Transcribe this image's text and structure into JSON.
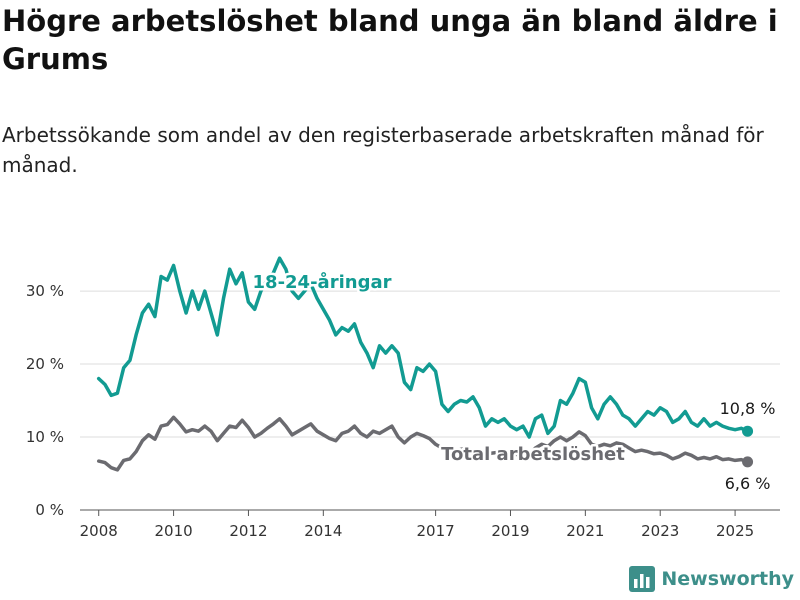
{
  "title": "Högre arbetslöshet bland unga än bland äldre i Grums",
  "subtitle": "Arbetssökande som andel av den registerbaserade arbetskraften månad för månad.",
  "brand": {
    "name": "Newsworthy",
    "icon": "chart-bars-icon",
    "color": "#3d8f8a"
  },
  "chart_data": {
    "type": "line",
    "title": "",
    "xlabel": "",
    "ylabel": "",
    "x_ticks": [
      "2008",
      "2010",
      "2012",
      "2014",
      "2017",
      "2019",
      "2021",
      "2023",
      "2025"
    ],
    "y_ticks": [
      "0 %",
      "10 %",
      "20 %",
      "30 %"
    ],
    "ylim": [
      0,
      37
    ],
    "grid": "horizontal",
    "series": [
      {
        "name": "18-24-åringar",
        "color": "#129b92",
        "end_label": "10,8 %",
        "points": [
          [
            "2008-01",
            18.0
          ],
          [
            "2008-03",
            17.2
          ],
          [
            "2008-05",
            15.7
          ],
          [
            "2008-07",
            16.0
          ],
          [
            "2008-09",
            19.5
          ],
          [
            "2008-11",
            20.5
          ],
          [
            "2009-01",
            24.0
          ],
          [
            "2009-03",
            27.0
          ],
          [
            "2009-05",
            28.2
          ],
          [
            "2009-07",
            26.5
          ],
          [
            "2009-09",
            32.0
          ],
          [
            "2009-11",
            31.5
          ],
          [
            "2010-01",
            33.5
          ],
          [
            "2010-03",
            30.0
          ],
          [
            "2010-05",
            27.0
          ],
          [
            "2010-07",
            30.0
          ],
          [
            "2010-09",
            27.5
          ],
          [
            "2010-11",
            30.0
          ],
          [
            "2011-01",
            27.0
          ],
          [
            "2011-03",
            24.0
          ],
          [
            "2011-05",
            29.0
          ],
          [
            "2011-07",
            33.0
          ],
          [
            "2011-09",
            31.0
          ],
          [
            "2011-11",
            32.5
          ],
          [
            "2012-01",
            28.5
          ],
          [
            "2012-03",
            27.5
          ],
          [
            "2012-05",
            30.0
          ],
          [
            "2012-07",
            31.5
          ],
          [
            "2012-09",
            32.5
          ],
          [
            "2012-11",
            34.5
          ],
          [
            "2013-01",
            33.0
          ],
          [
            "2013-03",
            30.0
          ],
          [
            "2013-05",
            29.0
          ],
          [
            "2013-07",
            30.0
          ],
          [
            "2013-09",
            31.0
          ],
          [
            "2013-11",
            29.0
          ],
          [
            "2014-01",
            27.5
          ],
          [
            "2014-03",
            26.0
          ],
          [
            "2014-05",
            24.0
          ],
          [
            "2014-07",
            25.0
          ],
          [
            "2014-09",
            24.5
          ],
          [
            "2014-11",
            25.5
          ],
          [
            "2015-01",
            23.0
          ],
          [
            "2015-03",
            21.5
          ],
          [
            "2015-05",
            19.5
          ],
          [
            "2015-07",
            22.5
          ],
          [
            "2015-09",
            21.5
          ],
          [
            "2015-11",
            22.5
          ],
          [
            "2016-01",
            21.5
          ],
          [
            "2016-03",
            17.5
          ],
          [
            "2016-05",
            16.5
          ],
          [
            "2016-07",
            19.5
          ],
          [
            "2016-09",
            19.0
          ],
          [
            "2016-11",
            20.0
          ],
          [
            "2017-01",
            19.0
          ],
          [
            "2017-03",
            14.5
          ],
          [
            "2017-05",
            13.5
          ],
          [
            "2017-07",
            14.5
          ],
          [
            "2017-09",
            15.0
          ],
          [
            "2017-11",
            14.8
          ],
          [
            "2018-01",
            15.5
          ],
          [
            "2018-03",
            14.0
          ],
          [
            "2018-05",
            11.5
          ],
          [
            "2018-07",
            12.5
          ],
          [
            "2018-09",
            12.0
          ],
          [
            "2018-11",
            12.5
          ],
          [
            "2019-01",
            11.5
          ],
          [
            "2019-03",
            11.0
          ],
          [
            "2019-05",
            11.5
          ],
          [
            "2019-07",
            10.0
          ],
          [
            "2019-09",
            12.5
          ],
          [
            "2019-11",
            13.0
          ],
          [
            "2020-01",
            10.5
          ],
          [
            "2020-03",
            11.5
          ],
          [
            "2020-05",
            15.0
          ],
          [
            "2020-07",
            14.5
          ],
          [
            "2020-09",
            16.0
          ],
          [
            "2020-11",
            18.0
          ],
          [
            "2021-01",
            17.5
          ],
          [
            "2021-03",
            14.0
          ],
          [
            "2021-05",
            12.5
          ],
          [
            "2021-07",
            14.5
          ],
          [
            "2021-09",
            15.5
          ],
          [
            "2021-11",
            14.5
          ],
          [
            "2022-01",
            13.0
          ],
          [
            "2022-03",
            12.5
          ],
          [
            "2022-05",
            11.5
          ],
          [
            "2022-07",
            12.5
          ],
          [
            "2022-09",
            13.5
          ],
          [
            "2022-11",
            13.0
          ],
          [
            "2023-01",
            14.0
          ],
          [
            "2023-03",
            13.5
          ],
          [
            "2023-05",
            12.0
          ],
          [
            "2023-07",
            12.5
          ],
          [
            "2023-09",
            13.5
          ],
          [
            "2023-11",
            12.0
          ],
          [
            "2024-01",
            11.5
          ],
          [
            "2024-03",
            12.5
          ],
          [
            "2024-05",
            11.5
          ],
          [
            "2024-07",
            12.0
          ],
          [
            "2024-09",
            11.5
          ],
          [
            "2024-11",
            11.2
          ],
          [
            "2025-01",
            11.0
          ],
          [
            "2025-03",
            11.2
          ],
          [
            "2025-05",
            10.8
          ]
        ]
      },
      {
        "name": "Total arbetslöshet",
        "color": "#6b6b70",
        "end_label": "6,6 %",
        "points": [
          [
            "2008-01",
            6.7
          ],
          [
            "2008-03",
            6.5
          ],
          [
            "2008-05",
            5.8
          ],
          [
            "2008-07",
            5.5
          ],
          [
            "2008-09",
            6.8
          ],
          [
            "2008-11",
            7.0
          ],
          [
            "2009-01",
            8.0
          ],
          [
            "2009-03",
            9.5
          ],
          [
            "2009-05",
            10.3
          ],
          [
            "2009-07",
            9.7
          ],
          [
            "2009-09",
            11.5
          ],
          [
            "2009-11",
            11.7
          ],
          [
            "2010-01",
            12.7
          ],
          [
            "2010-03",
            11.8
          ],
          [
            "2010-05",
            10.7
          ],
          [
            "2010-07",
            11.0
          ],
          [
            "2010-09",
            10.8
          ],
          [
            "2010-11",
            11.5
          ],
          [
            "2011-01",
            10.8
          ],
          [
            "2011-03",
            9.5
          ],
          [
            "2011-05",
            10.5
          ],
          [
            "2011-07",
            11.5
          ],
          [
            "2011-09",
            11.3
          ],
          [
            "2011-11",
            12.3
          ],
          [
            "2012-01",
            11.3
          ],
          [
            "2012-03",
            10.0
          ],
          [
            "2012-05",
            10.5
          ],
          [
            "2012-07",
            11.2
          ],
          [
            "2012-09",
            11.8
          ],
          [
            "2012-11",
            12.5
          ],
          [
            "2013-01",
            11.5
          ],
          [
            "2013-03",
            10.3
          ],
          [
            "2013-05",
            10.8
          ],
          [
            "2013-07",
            11.3
          ],
          [
            "2013-09",
            11.8
          ],
          [
            "2013-11",
            10.8
          ],
          [
            "2014-01",
            10.3
          ],
          [
            "2014-03",
            9.8
          ],
          [
            "2014-05",
            9.5
          ],
          [
            "2014-07",
            10.5
          ],
          [
            "2014-09",
            10.8
          ],
          [
            "2014-11",
            11.5
          ],
          [
            "2015-01",
            10.5
          ],
          [
            "2015-03",
            10.0
          ],
          [
            "2015-05",
            10.8
          ],
          [
            "2015-07",
            10.5
          ],
          [
            "2015-09",
            11.0
          ],
          [
            "2015-11",
            11.5
          ],
          [
            "2016-01",
            10.0
          ],
          [
            "2016-03",
            9.2
          ],
          [
            "2016-05",
            10.0
          ],
          [
            "2016-07",
            10.5
          ],
          [
            "2016-09",
            10.2
          ],
          [
            "2016-11",
            9.8
          ],
          [
            "2017-01",
            9.0
          ],
          [
            "2017-03",
            8.5
          ],
          [
            "2017-05",
            8.3
          ],
          [
            "2017-07",
            8.0
          ],
          [
            "2017-09",
            8.3
          ],
          [
            "2017-11",
            8.5
          ],
          [
            "2018-01",
            8.2
          ],
          [
            "2018-03",
            7.8
          ],
          [
            "2018-05",
            7.5
          ],
          [
            "2018-07",
            7.8
          ],
          [
            "2018-09",
            7.9
          ],
          [
            "2018-11",
            8.1
          ],
          [
            "2019-01",
            7.7
          ],
          [
            "2019-03",
            7.6
          ],
          [
            "2019-05",
            7.8
          ],
          [
            "2019-07",
            7.5
          ],
          [
            "2019-09",
            8.5
          ],
          [
            "2019-11",
            9.0
          ],
          [
            "2020-01",
            8.7
          ],
          [
            "2020-03",
            9.5
          ],
          [
            "2020-05",
            10.0
          ],
          [
            "2020-07",
            9.5
          ],
          [
            "2020-09",
            10.0
          ],
          [
            "2020-11",
            10.7
          ],
          [
            "2021-01",
            10.2
          ],
          [
            "2021-03",
            9.0
          ],
          [
            "2021-05",
            8.7
          ],
          [
            "2021-07",
            9.0
          ],
          [
            "2021-09",
            8.8
          ],
          [
            "2021-11",
            9.2
          ],
          [
            "2022-01",
            9.0
          ],
          [
            "2022-03",
            8.5
          ],
          [
            "2022-05",
            8.0
          ],
          [
            "2022-07",
            8.2
          ],
          [
            "2022-09",
            8.0
          ],
          [
            "2022-11",
            7.7
          ],
          [
            "2023-01",
            7.8
          ],
          [
            "2023-03",
            7.5
          ],
          [
            "2023-05",
            7.0
          ],
          [
            "2023-07",
            7.3
          ],
          [
            "2023-09",
            7.8
          ],
          [
            "2023-11",
            7.5
          ],
          [
            "2024-01",
            7.0
          ],
          [
            "2024-03",
            7.2
          ],
          [
            "2024-05",
            7.0
          ],
          [
            "2024-07",
            7.3
          ],
          [
            "2024-09",
            6.9
          ],
          [
            "2024-11",
            7.0
          ],
          [
            "2025-01",
            6.8
          ],
          [
            "2025-03",
            6.9
          ],
          [
            "2025-05",
            6.6
          ]
        ]
      }
    ]
  }
}
